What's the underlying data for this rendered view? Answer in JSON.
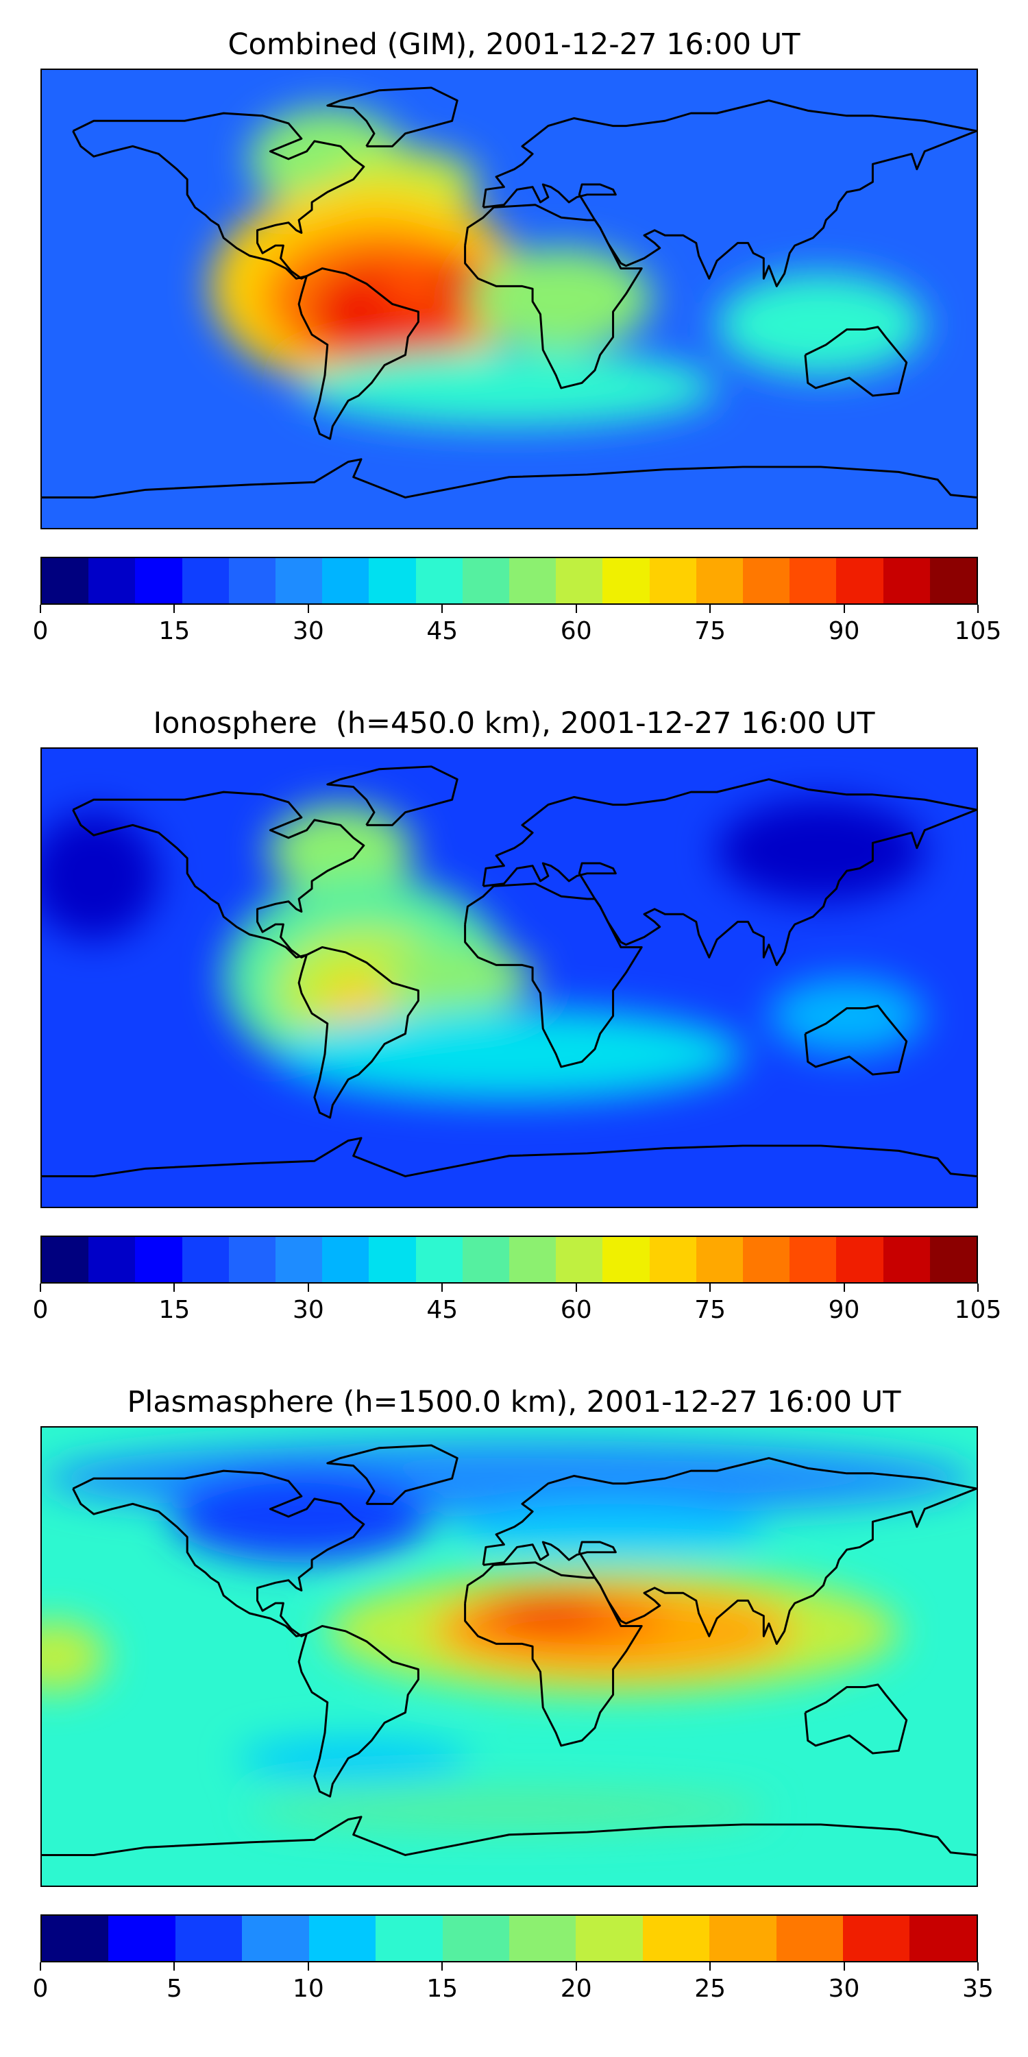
{
  "panels": [
    {
      "title": "Combined (GIM), 2001-12-27 16:00 UT",
      "colorbar": {
        "ticks": [
          "0",
          "15",
          "30",
          "45",
          "60",
          "75",
          "90",
          "105"
        ],
        "min": 0,
        "max": 105,
        "colors": [
          "#00007f",
          "#0000c8",
          "#0000ff",
          "#0f3fff",
          "#1e64ff",
          "#1e8cff",
          "#00b4ff",
          "#00e0f0",
          "#2df8d0",
          "#55f0a0",
          "#8cf070",
          "#c0f040",
          "#f0f000",
          "#ffd000",
          "#ffa800",
          "#ff7800",
          "#ff4c00",
          "#f01e00",
          "#c80000",
          "#8c0000"
        ]
      },
      "field": {
        "background": "#1e64ff",
        "blobs": [
          {
            "lon": -70,
            "lat": 55,
            "rx": 30,
            "ry": 20,
            "color": "#8cf070"
          },
          {
            "lon": -40,
            "lat": 45,
            "rx": 28,
            "ry": 14,
            "color": "#c0f040"
          },
          {
            "lon": -55,
            "lat": 5,
            "rx": 60,
            "ry": 40,
            "color": "#ffd000"
          },
          {
            "lon": -50,
            "lat": 0,
            "rx": 45,
            "ry": 28,
            "color": "#ff7800"
          },
          {
            "lon": -45,
            "lat": -5,
            "rx": 32,
            "ry": 20,
            "color": "#f01e00"
          },
          {
            "lon": -20,
            "lat": 5,
            "rx": 30,
            "ry": 12,
            "color": "#ff4c00"
          },
          {
            "lon": -15,
            "lat": 5,
            "rx": 12,
            "ry": 6,
            "color": "#c80000"
          },
          {
            "lon": 20,
            "lat": 0,
            "rx": 35,
            "ry": 20,
            "color": "#8cf070"
          },
          {
            "lon": 120,
            "lat": -10,
            "rx": 40,
            "ry": 20,
            "color": "#2df8d0"
          },
          {
            "lon": 0,
            "lat": -35,
            "rx": 80,
            "ry": 15,
            "color": "#2df8d0"
          }
        ]
      }
    },
    {
      "title": "Ionosphere  (h=450.0 km), 2001-12-27 16:00 UT",
      "colorbar": {
        "ticks": [
          "0",
          "15",
          "30",
          "45",
          "60",
          "75",
          "90",
          "105"
        ],
        "min": 0,
        "max": 105,
        "colors": [
          "#00007f",
          "#0000c8",
          "#0000ff",
          "#0f3fff",
          "#1e64ff",
          "#1e8cff",
          "#00b4ff",
          "#00e0f0",
          "#2df8d0",
          "#55f0a0",
          "#8cf070",
          "#c0f040",
          "#f0f000",
          "#ffd000",
          "#ffa800",
          "#ff7800",
          "#ff4c00",
          "#f01e00",
          "#c80000",
          "#8c0000"
        ]
      },
      "field": {
        "background": "#0f3fff",
        "blobs": [
          {
            "lon": -65,
            "lat": 50,
            "rx": 28,
            "ry": 18,
            "color": "#8cf070"
          },
          {
            "lon": -55,
            "lat": 0,
            "rx": 55,
            "ry": 40,
            "color": "#55f0a0"
          },
          {
            "lon": -55,
            "lat": -5,
            "rx": 35,
            "ry": 25,
            "color": "#c0f040"
          },
          {
            "lon": -58,
            "lat": -10,
            "rx": 14,
            "ry": 10,
            "color": "#ffd000"
          },
          {
            "lon": -20,
            "lat": 0,
            "rx": 30,
            "ry": 12,
            "color": "#8cf070"
          },
          {
            "lon": 120,
            "lat": 50,
            "rx": 40,
            "ry": 20,
            "color": "#0000c8"
          },
          {
            "lon": -160,
            "lat": 40,
            "rx": 25,
            "ry": 25,
            "color": "#0000c8"
          },
          {
            "lon": 0,
            "lat": -30,
            "rx": 90,
            "ry": 18,
            "color": "#00e0f0"
          },
          {
            "lon": 130,
            "lat": -15,
            "rx": 30,
            "ry": 15,
            "color": "#00b4ff"
          }
        ]
      }
    },
    {
      "title": "Plasmasphere (h=1500.0 km), 2001-12-27 16:00 UT",
      "colorbar": {
        "ticks": [
          "0",
          "5",
          "10",
          "15",
          "20",
          "25",
          "30",
          "35"
        ],
        "min": 0,
        "max": 35,
        "colors": [
          "#00007f",
          "#0000ff",
          "#0f3fff",
          "#1e8cff",
          "#00c8ff",
          "#2df8d0",
          "#55f0a0",
          "#8cf070",
          "#c0f040",
          "#ffd000",
          "#ffa800",
          "#ff7800",
          "#f01e00",
          "#c80000"
        ]
      },
      "field": {
        "background": "#2df8d0",
        "blobs": [
          {
            "lon": 0,
            "lat": 70,
            "rx": 180,
            "ry": 15,
            "color": "#1e8cff"
          },
          {
            "lon": -80,
            "lat": 55,
            "rx": 50,
            "ry": 18,
            "color": "#0f3fff"
          },
          {
            "lon": 40,
            "lat": 50,
            "rx": 60,
            "ry": 10,
            "color": "#00c8ff"
          },
          {
            "lon": 40,
            "lat": 10,
            "rx": 110,
            "ry": 25,
            "color": "#c0f040"
          },
          {
            "lon": 40,
            "lat": 10,
            "rx": 70,
            "ry": 18,
            "color": "#ffa800"
          },
          {
            "lon": 20,
            "lat": 15,
            "rx": 40,
            "ry": 12,
            "color": "#ff7800"
          },
          {
            "lon": 15,
            "lat": 18,
            "rx": 22,
            "ry": 6,
            "color": "#f01e00"
          },
          {
            "lon": -175,
            "lat": 0,
            "rx": 20,
            "ry": 14,
            "color": "#c0f040"
          },
          {
            "lon": -60,
            "lat": -40,
            "rx": 45,
            "ry": 8,
            "color": "#00c8ff"
          },
          {
            "lon": 0,
            "lat": -60,
            "rx": 100,
            "ry": 8,
            "color": "#55f0a0"
          }
        ]
      }
    }
  ]
}
